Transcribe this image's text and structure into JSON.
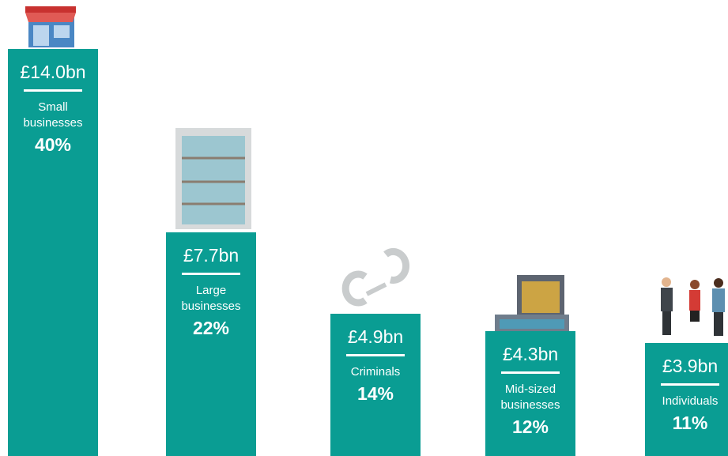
{
  "chart_data": {
    "type": "bar",
    "categories": [
      "Small businesses",
      "Large businesses",
      "Criminals",
      "Mid-sized businesses",
      "Individuals"
    ],
    "values": [
      14.0,
      7.7,
      4.9,
      4.3,
      3.9
    ],
    "value_labels": [
      "£14.0bn",
      "£7.7bn",
      "£4.9bn",
      "£4.3bn",
      "£3.9bn"
    ],
    "percentages": [
      40,
      22,
      14,
      12,
      11
    ],
    "percentage_labels": [
      "40%",
      "22%",
      "14%",
      "12%",
      "11%"
    ],
    "color": "#0a9d93"
  }
}
